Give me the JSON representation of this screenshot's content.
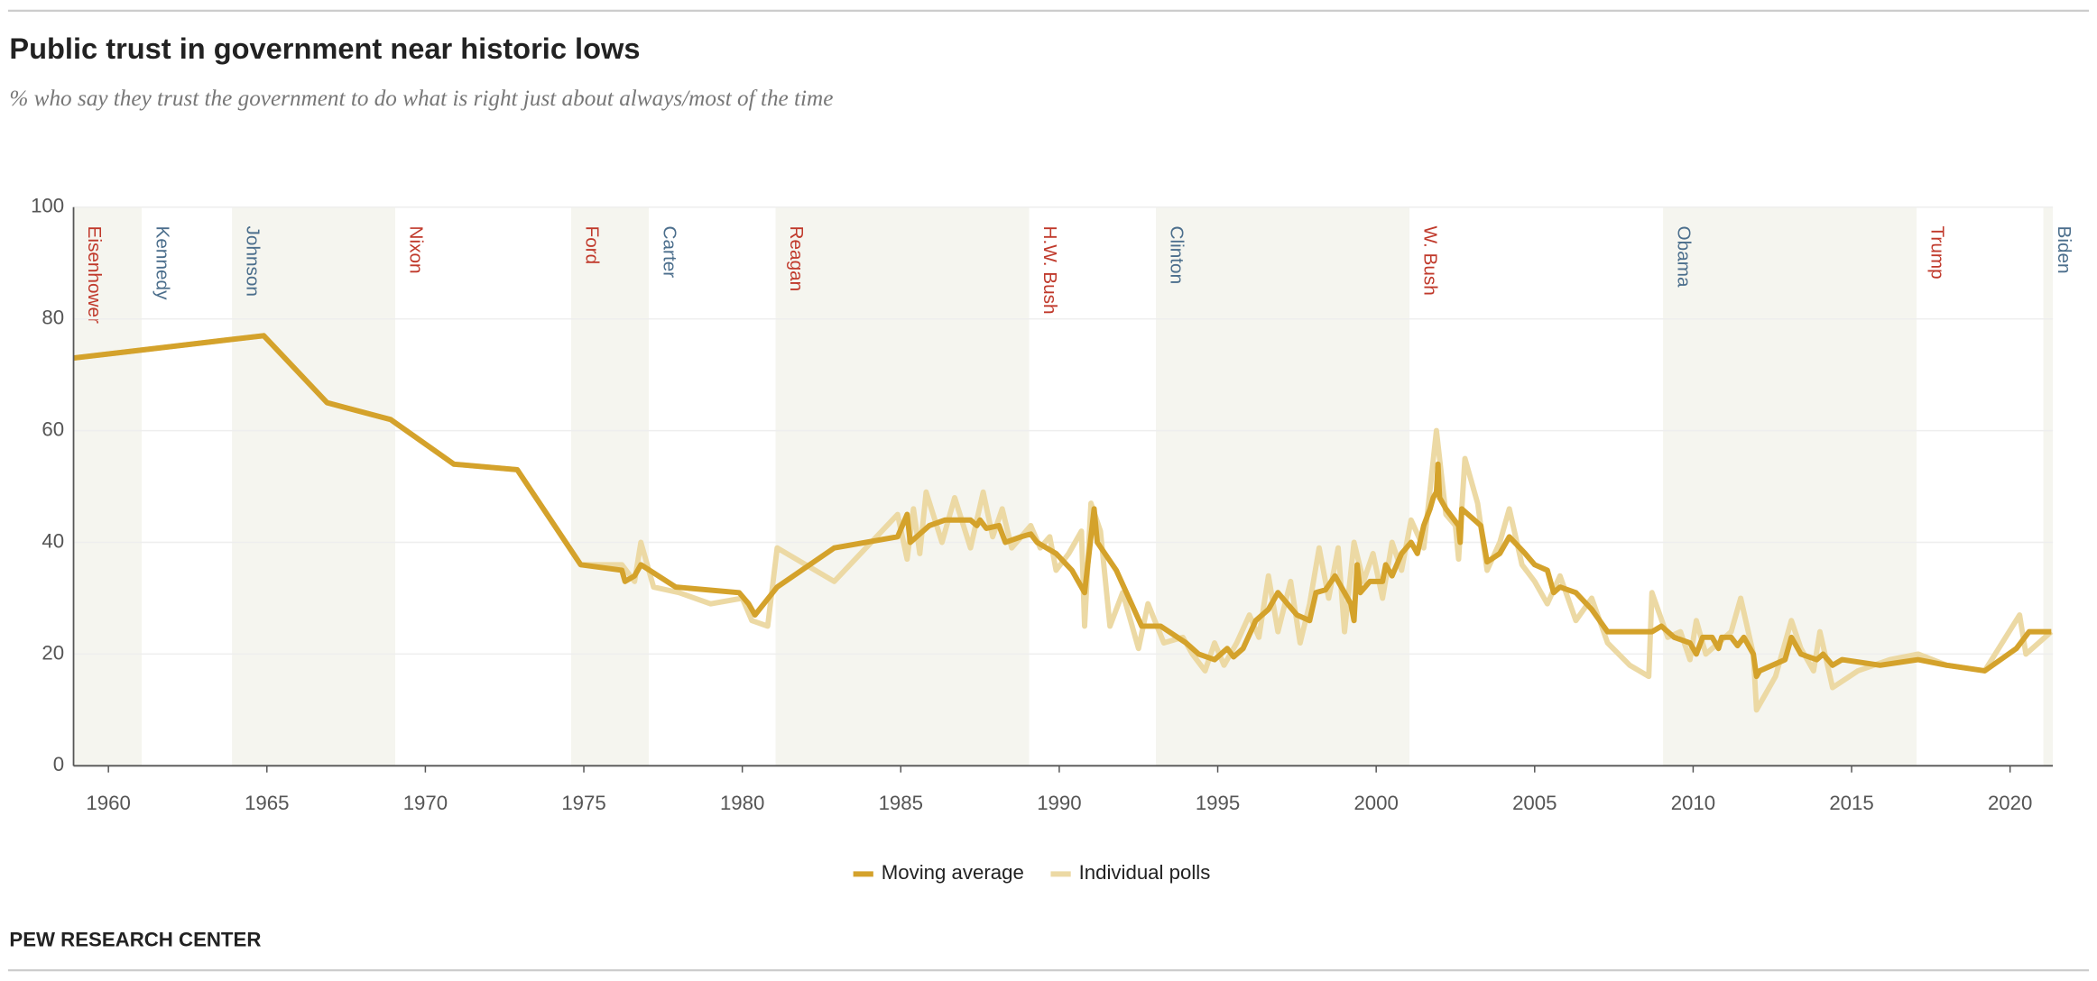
{
  "header": {
    "title": "Public trust in government near historic lows",
    "subtitle": "% who say they trust the government to do what is right just about always/most of the time"
  },
  "chart_data": {
    "type": "line",
    "xlim": [
      1958.9,
      2021.35
    ],
    "ylim": [
      0,
      100
    ],
    "xticks": [
      1960,
      1965,
      1970,
      1975,
      1980,
      1985,
      1990,
      1995,
      2000,
      2005,
      2010,
      2015,
      2020
    ],
    "yticks": [
      0,
      20,
      40,
      60,
      80,
      100
    ],
    "grid": true,
    "legend": "bottom",
    "terms": [
      {
        "label": "Eisenhower",
        "start": 1958.9,
        "end": 1961.05,
        "color": "#c0392b",
        "shaded": true
      },
      {
        "label": "Kennedy",
        "start": 1961.05,
        "end": 1963.9,
        "color": "#4b6e8c",
        "shaded": false
      },
      {
        "label": "Johnson",
        "start": 1963.9,
        "end": 1969.05,
        "color": "#4b6e8c",
        "shaded": true
      },
      {
        "label": "Nixon",
        "start": 1969.05,
        "end": 1974.6,
        "color": "#c0392b",
        "shaded": false
      },
      {
        "label": "Ford",
        "start": 1974.6,
        "end": 1977.05,
        "color": "#c0392b",
        "shaded": true
      },
      {
        "label": "Carter",
        "start": 1977.05,
        "end": 1981.05,
        "color": "#4b6e8c",
        "shaded": false
      },
      {
        "label": "Reagan",
        "start": 1981.05,
        "end": 1989.05,
        "color": "#c0392b",
        "shaded": true
      },
      {
        "label": "H.W. Bush",
        "start": 1989.05,
        "end": 1993.05,
        "color": "#c0392b",
        "shaded": false
      },
      {
        "label": "Clinton",
        "start": 1993.05,
        "end": 2001.05,
        "color": "#4b6e8c",
        "shaded": true
      },
      {
        "label": "W. Bush",
        "start": 2001.05,
        "end": 2009.05,
        "color": "#c0392b",
        "shaded": false
      },
      {
        "label": "Obama",
        "start": 2009.05,
        "end": 2017.05,
        "color": "#4b6e8c",
        "shaded": true
      },
      {
        "label": "Trump",
        "start": 2017.05,
        "end": 2021.05,
        "color": "#c0392b",
        "shaded": false
      },
      {
        "label": "Biden",
        "start": 2021.05,
        "end": 2021.35,
        "color": "#4b6e8c",
        "shaded": true
      }
    ],
    "series": [
      {
        "name": "Individual polls",
        "color": "#ecd9a4",
        "x": [
          1958.9,
          1964.9,
          1966.9,
          1968.9,
          1970.9,
          1972.9,
          1974.9,
          1976.2,
          1976.6,
          1976.8,
          1977.2,
          1978,
          1979,
          1980,
          1980.3,
          1980.8,
          1981.1,
          1982.9,
          1984.9,
          1985.2,
          1985.4,
          1985.6,
          1985.8,
          1986.3,
          1986.7,
          1987.2,
          1987.6,
          1987.9,
          1988.2,
          1988.5,
          1988.8,
          1989.1,
          1989.4,
          1989.7,
          1989.9,
          1990.3,
          1990.7,
          1990.8,
          1991.0,
          1991.3,
          1991.6,
          1992.0,
          1992.5,
          1992.8,
          1993.3,
          1993.9,
          1994.2,
          1994.6,
          1994.9,
          1995.2,
          1995.6,
          1996.0,
          1996.3,
          1996.6,
          1996.9,
          1997.3,
          1997.6,
          1997.9,
          1998.2,
          1998.5,
          1998.8,
          1999.0,
          1999.3,
          1999.6,
          1999.9,
          2000.2,
          2000.5,
          2000.8,
          2001.1,
          2001.5,
          2001.9,
          2002.2,
          2002.5,
          2002.6,
          2002.8,
          2003.2,
          2003.5,
          2003.9,
          2004.2,
          2004.6,
          2005.0,
          2005.4,
          2005.8,
          2006.3,
          2006.8,
          2007.3,
          2008.0,
          2008.6,
          2008.7,
          2009.2,
          2009.6,
          2009.9,
          2010.1,
          2010.4,
          2010.8,
          2011.2,
          2011.5,
          2011.9,
          2012.0,
          2012.6,
          2013.1,
          2013.4,
          2013.8,
          2014.0,
          2014.4,
          2015.2,
          2016.2,
          2017.1,
          2018.0,
          2019.2,
          2020.3,
          2020.5,
          2021.3
        ],
        "values": [
          73,
          77,
          65,
          62,
          54,
          53,
          36,
          36,
          33,
          40,
          32,
          31,
          29,
          30,
          26,
          25,
          39,
          33,
          45,
          37,
          46,
          38,
          49,
          40,
          48,
          39,
          49,
          41,
          46,
          39,
          41,
          43,
          39,
          41,
          35,
          38,
          42,
          25,
          47,
          42,
          25,
          31,
          21,
          29,
          22,
          23,
          20,
          17,
          22,
          18,
          22,
          27,
          23,
          34,
          24,
          33,
          22,
          29,
          39,
          30,
          39,
          24,
          40,
          33,
          38,
          30,
          40,
          35,
          44,
          39,
          60,
          45,
          43,
          37,
          55,
          47,
          35,
          40,
          46,
          36,
          33,
          29,
          34,
          26,
          30,
          22,
          18,
          16,
          31,
          23,
          24,
          19,
          26,
          20,
          22,
          24,
          30,
          20,
          10,
          16,
          26,
          21,
          17,
          24,
          14,
          17,
          19,
          20,
          18,
          17,
          27,
          20,
          24
        ]
      },
      {
        "name": "Moving average",
        "color": "#d4a22b",
        "x": [
          1958.9,
          1964.9,
          1966.9,
          1968.9,
          1970.9,
          1972.9,
          1974.9,
          1976.2,
          1976.3,
          1976.6,
          1976.8,
          1977.9,
          1979.9,
          1980.2,
          1980.4,
          1981.1,
          1982.9,
          1984.9,
          1985.2,
          1985.3,
          1985.9,
          1986.4,
          1987.2,
          1987.4,
          1987.5,
          1987.7,
          1988.1,
          1988.3,
          1988.8,
          1989.1,
          1989.3,
          1989.9,
          1990.4,
          1990.8,
          1991.1,
          1991.2,
          1991.8,
          1992.6,
          1993.2,
          1994.0,
          1994.4,
          1994.9,
          1995.3,
          1995.5,
          1995.8,
          1996.2,
          1996.6,
          1996.9,
          1997.2,
          1997.5,
          1997.9,
          1998.1,
          1998.4,
          1998.7,
          1999.0,
          1999.2,
          1999.3,
          1999.4,
          1999.5,
          1999.8,
          2000.2,
          2000.3,
          2000.5,
          2000.8,
          2001.1,
          2001.3,
          2001.5,
          2001.7,
          2001.8,
          2001.9,
          2001.95,
          2002.0,
          2002.2,
          2002.6,
          2002.65,
          2002.7,
          2003.3,
          2003.5,
          2003.9,
          2004.2,
          2004.7,
          2005.0,
          2005.4,
          2005.6,
          2005.8,
          2006.3,
          2006.8,
          2007.3,
          2008.0,
          2008.7,
          2009.0,
          2009.4,
          2009.9,
          2010.1,
          2010.3,
          2010.6,
          2010.8,
          2010.9,
          2011.2,
          2011.4,
          2011.6,
          2011.9,
          2012.0,
          2012.1,
          2012.9,
          2013.1,
          2013.4,
          2013.9,
          2014.1,
          2014.4,
          2014.7,
          2015.9,
          2017.1,
          2018.0,
          2019.2,
          2020.2,
          2020.6,
          2021.3
        ],
        "values": [
          73,
          77,
          65,
          62,
          54,
          53,
          36,
          35,
          33,
          34,
          36,
          32,
          31,
          29,
          27,
          32,
          39,
          41,
          45,
          40,
          43,
          44,
          44,
          43,
          44,
          42.5,
          43,
          40,
          41,
          41.5,
          40,
          38,
          35,
          31,
          46,
          40,
          35,
          25,
          25,
          22,
          20,
          19,
          21,
          19.5,
          21,
          26,
          28,
          31,
          29,
          27,
          26,
          31,
          31.5,
          34,
          31,
          29,
          26,
          36,
          31,
          33,
          33,
          36,
          34,
          38,
          40,
          38,
          43,
          46,
          48,
          49,
          54,
          48,
          46,
          43,
          40,
          46,
          43,
          36.5,
          38,
          41,
          38,
          36,
          35,
          31,
          32,
          31,
          28,
          24,
          24,
          24,
          25,
          23,
          22,
          20,
          23,
          23,
          21,
          23,
          23,
          21.5,
          23,
          20,
          16,
          17,
          19,
          23,
          20,
          19,
          20,
          18,
          19,
          18,
          19,
          18,
          17,
          21,
          24,
          24
        ]
      }
    ]
  },
  "footer": "PEW RESEARCH CENTER"
}
